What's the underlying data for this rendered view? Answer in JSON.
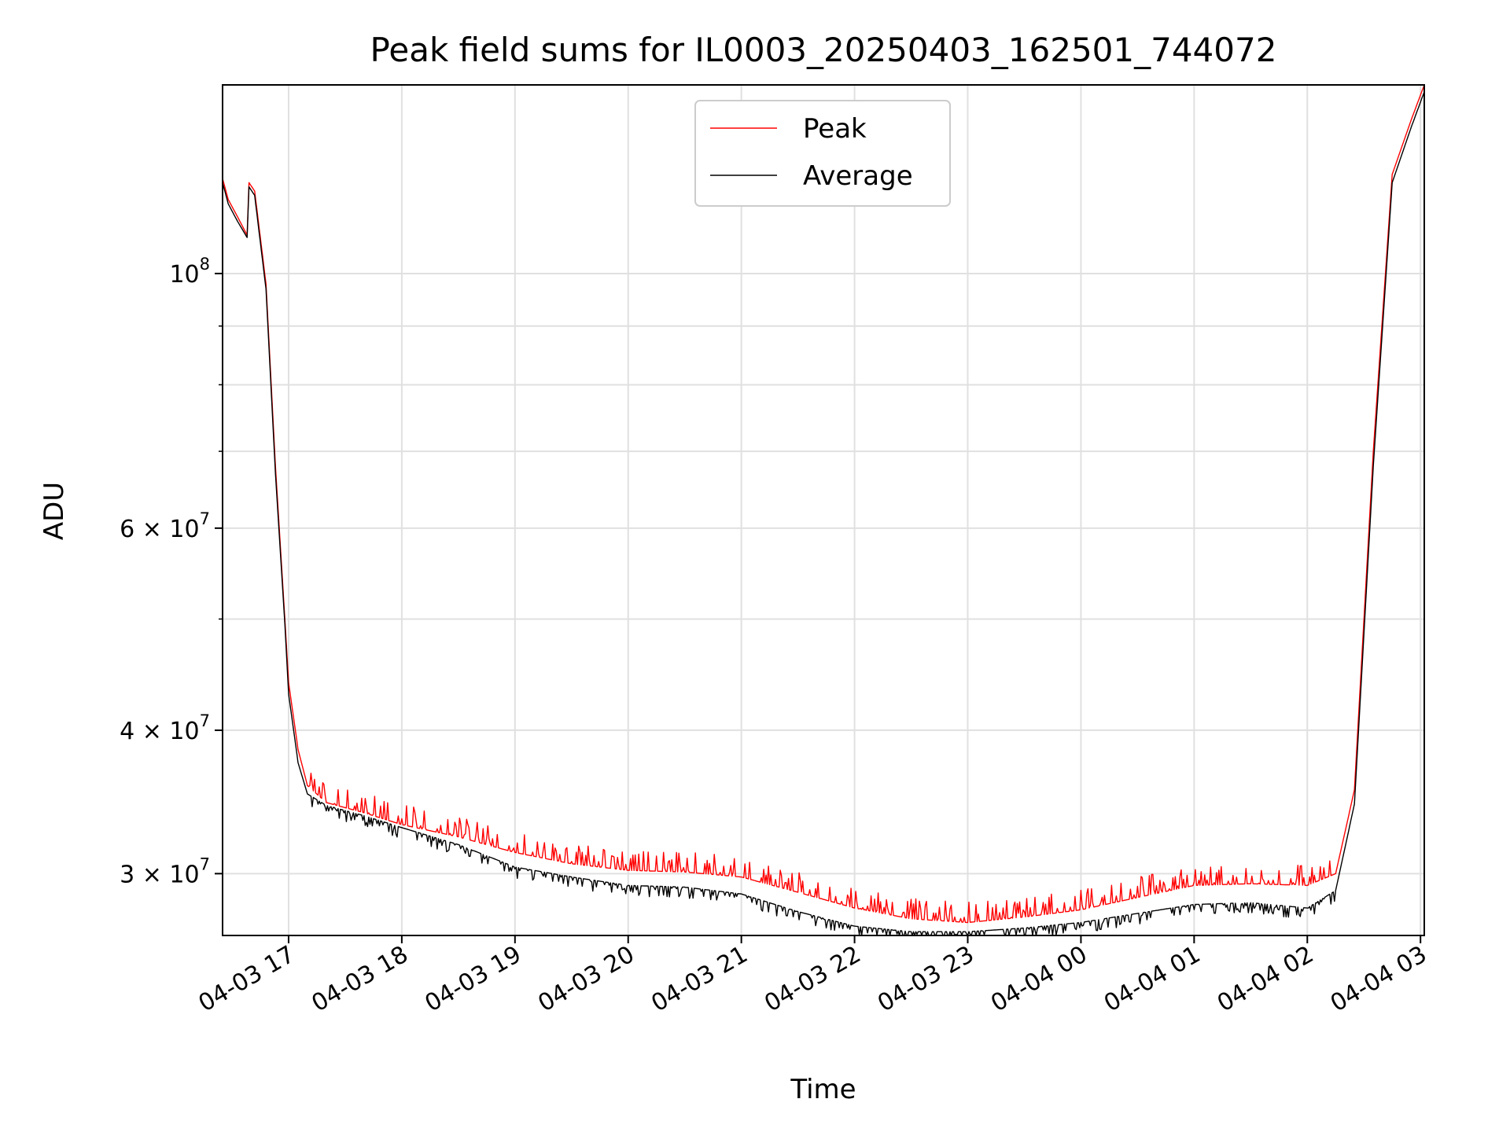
{
  "chart_data": {
    "type": "line",
    "title": "Peak field sums for IL0003_20250403_162501_744072",
    "xlabel": "Time",
    "ylabel": "ADU",
    "yscale": "log",
    "grid": true,
    "legend_position": "upper center",
    "xlim": [
      "2025-04-03 16:25",
      "2025-04-04 03:02"
    ],
    "ylim": [
      26500000,
      146000000
    ],
    "x_ticks": [
      {
        "t": "2025-04-03 17:00",
        "label": "04-03 17"
      },
      {
        "t": "2025-04-03 18:00",
        "label": "04-03 18"
      },
      {
        "t": "2025-04-03 19:00",
        "label": "04-03 19"
      },
      {
        "t": "2025-04-03 20:00",
        "label": "04-03 20"
      },
      {
        "t": "2025-04-03 21:00",
        "label": "04-03 21"
      },
      {
        "t": "2025-04-03 22:00",
        "label": "04-03 22"
      },
      {
        "t": "2025-04-03 23:00",
        "label": "04-03 23"
      },
      {
        "t": "2025-04-04 00:00",
        "label": "04-04 00"
      },
      {
        "t": "2025-04-04 01:00",
        "label": "04-04 01"
      },
      {
        "t": "2025-04-04 02:00",
        "label": "04-04 02"
      },
      {
        "t": "2025-04-04 03:00",
        "label": "04-04 03"
      }
    ],
    "y_ticks_major": [
      {
        "value": 100000000,
        "base": "10",
        "exp": "8"
      },
      {
        "value": 60000000,
        "base": "6 × 10",
        "exp": "7"
      },
      {
        "value": 40000000,
        "base": "4 × 10",
        "exp": "7"
      },
      {
        "value": 30000000,
        "base": "3 × 10",
        "exp": "7"
      }
    ],
    "y_ticks_minor": [
      90000000,
      80000000,
      70000000,
      50000000
    ],
    "series": [
      {
        "name": "Peak",
        "color": "#ff0000",
        "points": [
          [
            "2025-04-03 16:25",
            121000000
          ],
          [
            "2025-04-03 16:28",
            116000000
          ],
          [
            "2025-04-03 16:33",
            112000000
          ],
          [
            "2025-04-03 16:38",
            108000000
          ],
          [
            "2025-04-03 16:39",
            120000000
          ],
          [
            "2025-04-03 16:42",
            118000000
          ],
          [
            "2025-04-03 16:48",
            98000000
          ],
          [
            "2025-04-03 16:53",
            68000000
          ],
          [
            "2025-04-03 16:58",
            50000000
          ],
          [
            "2025-04-03 17:00",
            44000000
          ],
          [
            "2025-04-03 17:05",
            38500000
          ],
          [
            "2025-04-03 17:10",
            35800000
          ],
          [
            "2025-04-03 17:20",
            34600000
          ],
          [
            "2025-04-03 17:40",
            33900000
          ],
          [
            "2025-04-03 18:00",
            33100000
          ],
          [
            "2025-04-03 18:30",
            32300000
          ],
          [
            "2025-04-03 19:00",
            31300000
          ],
          [
            "2025-04-03 19:30",
            30600000
          ],
          [
            "2025-04-03 20:00",
            30200000
          ],
          [
            "2025-04-03 20:30",
            30100000
          ],
          [
            "2025-04-03 21:00",
            29800000
          ],
          [
            "2025-04-03 21:30",
            28900000
          ],
          [
            "2025-04-03 22:00",
            28000000
          ],
          [
            "2025-04-03 22:30",
            27400000
          ],
          [
            "2025-04-03 23:00",
            27200000
          ],
          [
            "2025-04-03 23:30",
            27500000
          ],
          [
            "2025-04-04 00:00",
            27900000
          ],
          [
            "2025-04-04 00:30",
            28600000
          ],
          [
            "2025-04-04 01:00",
            29300000
          ],
          [
            "2025-04-04 01:30",
            29400000
          ],
          [
            "2025-04-04 02:00",
            29300000
          ],
          [
            "2025-04-04 02:15",
            30000000
          ],
          [
            "2025-04-04 02:25",
            35500000
          ],
          [
            "2025-04-04 02:35",
            70000000
          ],
          [
            "2025-04-04 02:45",
            122000000
          ],
          [
            "2025-04-04 02:55",
            136000000
          ],
          [
            "2025-04-04 03:02",
            146000000
          ]
        ]
      },
      {
        "name": "Average",
        "color": "#000000",
        "points": [
          [
            "2025-04-03 16:25",
            120000000
          ],
          [
            "2025-04-03 16:28",
            115000000
          ],
          [
            "2025-04-03 16:33",
            111000000
          ],
          [
            "2025-04-03 16:38",
            107500000
          ],
          [
            "2025-04-03 16:39",
            119000000
          ],
          [
            "2025-04-03 16:42",
            117000000
          ],
          [
            "2025-04-03 16:48",
            97000000
          ],
          [
            "2025-04-03 16:53",
            67000000
          ],
          [
            "2025-04-03 16:58",
            49500000
          ],
          [
            "2025-04-03 17:00",
            43000000
          ],
          [
            "2025-04-03 17:05",
            37500000
          ],
          [
            "2025-04-03 17:10",
            35200000
          ],
          [
            "2025-04-03 17:20",
            34400000
          ],
          [
            "2025-04-03 17:40",
            33700000
          ],
          [
            "2025-04-03 18:00",
            32900000
          ],
          [
            "2025-04-03 18:30",
            31800000
          ],
          [
            "2025-04-03 19:00",
            30400000
          ],
          [
            "2025-04-03 19:30",
            29800000
          ],
          [
            "2025-04-03 20:00",
            29300000
          ],
          [
            "2025-04-03 20:30",
            29200000
          ],
          [
            "2025-04-03 21:00",
            28800000
          ],
          [
            "2025-04-03 21:30",
            27800000
          ],
          [
            "2025-04-03 22:00",
            27000000
          ],
          [
            "2025-04-03 22:30",
            26700000
          ],
          [
            "2025-04-03 23:00",
            26700000
          ],
          [
            "2025-04-03 23:30",
            26900000
          ],
          [
            "2025-04-04 00:00",
            27200000
          ],
          [
            "2025-04-04 00:30",
            27700000
          ],
          [
            "2025-04-04 01:00",
            28200000
          ],
          [
            "2025-04-04 01:30",
            28300000
          ],
          [
            "2025-04-04 02:00",
            28000000
          ],
          [
            "2025-04-04 02:15",
            29000000
          ],
          [
            "2025-04-04 02:25",
            34500000
          ],
          [
            "2025-04-04 02:35",
            68000000
          ],
          [
            "2025-04-04 02:45",
            120000000
          ],
          [
            "2025-04-04 02:55",
            134000000
          ],
          [
            "2025-04-04 03:02",
            144000000
          ]
        ]
      }
    ]
  }
}
